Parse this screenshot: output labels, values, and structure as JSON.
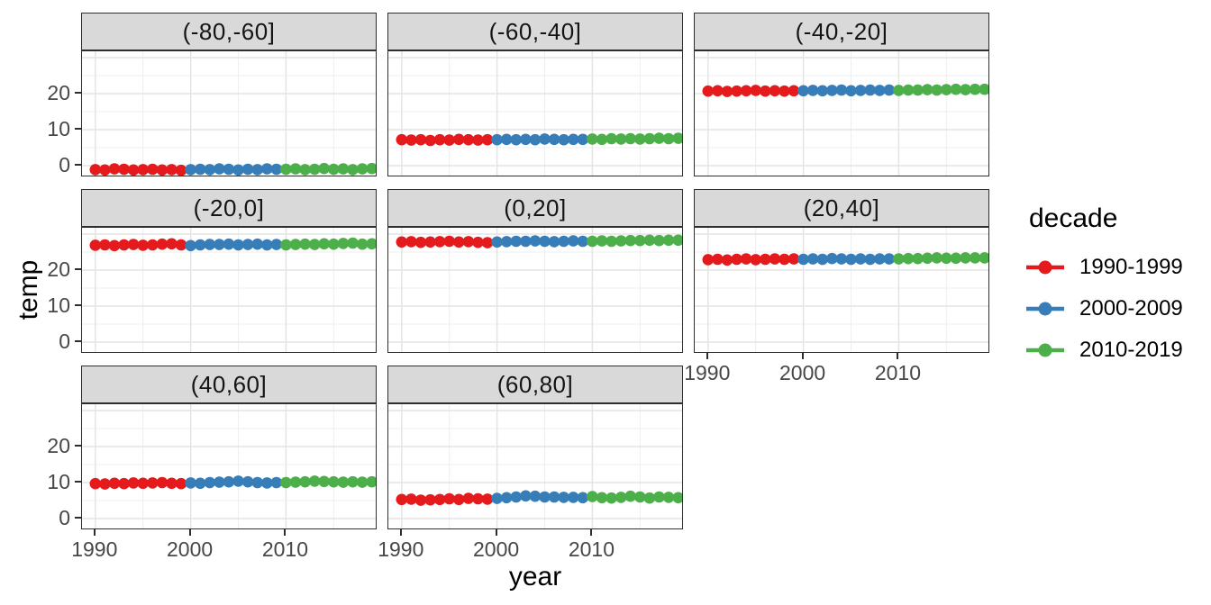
{
  "chart_data": {
    "type": "scatter",
    "title": "",
    "xlabel": "year",
    "ylabel": "temp",
    "grid": true,
    "legend_position": "right",
    "xlim": [
      1988.6,
      2019.6
    ],
    "ylim": [
      -3.25,
      31.75
    ],
    "xticks": [
      1990,
      2000,
      2010
    ],
    "yticks": [
      0,
      10,
      20
    ],
    "x_major_grid": [
      1990,
      2000,
      2010
    ],
    "x_minor_grid": [
      1995,
      2005,
      2015
    ],
    "y_major_grid": [
      0,
      10,
      20,
      30
    ],
    "y_minor_grid": [
      5,
      15,
      25
    ],
    "years": [
      1990,
      1991,
      1992,
      1993,
      1994,
      1995,
      1996,
      1997,
      1998,
      1999,
      2000,
      2001,
      2002,
      2003,
      2004,
      2005,
      2006,
      2007,
      2008,
      2009,
      2010,
      2011,
      2012,
      2013,
      2014,
      2015,
      2016,
      2017,
      2018,
      2019
    ],
    "facets": [
      {
        "label": "(-80,-60]",
        "temps": [
          -1.1,
          -1.2,
          -0.9,
          -1.0,
          -1.2,
          -1.1,
          -1.0,
          -1.2,
          -1.1,
          -1.3,
          -1.1,
          -1.0,
          -1.1,
          -0.9,
          -1.0,
          -1.2,
          -1.0,
          -1.1,
          -0.9,
          -1.0,
          -1.0,
          -0.9,
          -1.1,
          -1.0,
          -0.8,
          -1.0,
          -0.9,
          -1.1,
          -0.9,
          -0.8
        ]
      },
      {
        "label": "(-60,-40]",
        "temps": [
          7.2,
          7.1,
          7.2,
          7.0,
          7.2,
          7.1,
          7.3,
          7.2,
          7.1,
          7.2,
          7.2,
          7.3,
          7.2,
          7.3,
          7.2,
          7.4,
          7.3,
          7.2,
          7.3,
          7.3,
          7.4,
          7.3,
          7.5,
          7.4,
          7.5,
          7.4,
          7.5,
          7.6,
          7.5,
          7.6
        ]
      },
      {
        "label": "(-40,-20]",
        "temps": [
          20.7,
          20.8,
          20.6,
          20.7,
          20.8,
          20.9,
          20.7,
          20.8,
          20.7,
          20.8,
          20.8,
          20.9,
          20.8,
          20.9,
          21.0,
          20.8,
          20.9,
          21.0,
          20.9,
          21.0,
          20.9,
          21.0,
          21.0,
          21.1,
          21.0,
          21.1,
          21.2,
          21.1,
          21.2,
          21.2
        ]
      },
      {
        "label": "(-20,0]",
        "temps": [
          26.9,
          27.0,
          26.8,
          27.0,
          27.1,
          26.9,
          27.0,
          27.2,
          27.3,
          27.0,
          26.8,
          27.0,
          27.1,
          27.1,
          27.2,
          27.0,
          27.1,
          27.2,
          27.0,
          27.1,
          27.0,
          27.1,
          27.2,
          27.1,
          27.3,
          27.2,
          27.4,
          27.5,
          27.2,
          27.3
        ]
      },
      {
        "label": "(0,20]",
        "temps": [
          27.8,
          27.9,
          27.7,
          27.8,
          27.9,
          28.0,
          27.8,
          27.9,
          27.7,
          27.6,
          27.8,
          27.9,
          28.0,
          28.0,
          28.1,
          28.0,
          27.9,
          28.0,
          28.1,
          28.0,
          28.0,
          28.1,
          28.0,
          28.1,
          28.2,
          28.2,
          28.3,
          28.2,
          28.3,
          28.3
        ]
      },
      {
        "label": "(20,40]",
        "temps": [
          22.9,
          23.0,
          22.8,
          23.0,
          23.1,
          22.9,
          23.0,
          23.1,
          23.0,
          23.1,
          23.0,
          23.1,
          23.0,
          23.2,
          23.1,
          23.0,
          23.1,
          23.0,
          23.1,
          23.1,
          23.1,
          23.2,
          23.2,
          23.3,
          23.4,
          23.3,
          23.3,
          23.4,
          23.4,
          23.4
        ]
      },
      {
        "label": "(40,60]",
        "temps": [
          9.7,
          9.6,
          9.8,
          9.7,
          9.9,
          9.8,
          9.9,
          10.0,
          9.8,
          9.7,
          9.9,
          9.8,
          10.0,
          10.1,
          10.2,
          10.4,
          10.2,
          10.0,
          9.9,
          10.0,
          10.0,
          10.1,
          10.2,
          10.4,
          10.3,
          10.2,
          10.1,
          10.2,
          10.1,
          10.2
        ]
      },
      {
        "label": "(60,80]",
        "temps": [
          5.3,
          5.4,
          5.1,
          5.2,
          5.3,
          5.5,
          5.3,
          5.6,
          5.5,
          5.4,
          5.6,
          5.8,
          6.0,
          6.3,
          6.2,
          6.0,
          6.0,
          5.9,
          5.9,
          5.8,
          6.1,
          5.8,
          5.7,
          5.9,
          6.2,
          6.0,
          5.7,
          6.0,
          5.9,
          5.8
        ]
      }
    ],
    "legend": {
      "title": "decade",
      "entries": [
        {
          "label": "1990-1999",
          "color": "#E41A1C"
        },
        {
          "label": "2000-2009",
          "color": "#377EB8"
        },
        {
          "label": "2010-2019",
          "color": "#4DAF4A"
        }
      ]
    },
    "colors": {
      "strip_bg": "#d9d9d9",
      "panel_border": "#2e2e2e",
      "grid_major": "#e4e4e4",
      "grid_minor": "#efefef",
      "axis_text": "#474747"
    }
  }
}
